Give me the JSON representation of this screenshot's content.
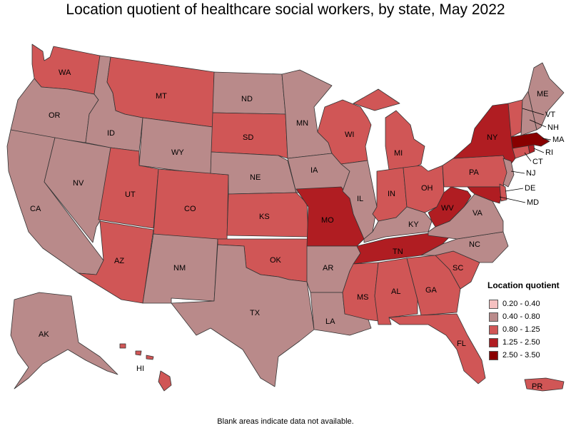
{
  "title": "Location quotient of healthcare social workers, by state, May 2022",
  "footnote": "Blank areas indicate data not available.",
  "legend": {
    "title": "Location quotient",
    "items": [
      {
        "label": "0.20 - 0.40",
        "color": "#f5c0c0"
      },
      {
        "label": "0.40 - 0.80",
        "color": "#b98a8a"
      },
      {
        "label": "0.80 - 1.25",
        "color": "#d05656"
      },
      {
        "label": "1.25 - 2.50",
        "color": "#b01d22"
      },
      {
        "label": "2.50 - 3.50",
        "color": "#880000"
      }
    ]
  },
  "states": [
    {
      "abbr": "WA",
      "class": 2
    },
    {
      "abbr": "OR",
      "class": 1
    },
    {
      "abbr": "CA",
      "class": 1
    },
    {
      "abbr": "NV",
      "class": 1
    },
    {
      "abbr": "ID",
      "class": 1
    },
    {
      "abbr": "MT",
      "class": 2
    },
    {
      "abbr": "WY",
      "class": 1
    },
    {
      "abbr": "UT",
      "class": 2
    },
    {
      "abbr": "AZ",
      "class": 2
    },
    {
      "abbr": "CO",
      "class": 2
    },
    {
      "abbr": "NM",
      "class": 1
    },
    {
      "abbr": "ND",
      "class": 1
    },
    {
      "abbr": "SD",
      "class": 2
    },
    {
      "abbr": "NE",
      "class": 1
    },
    {
      "abbr": "KS",
      "class": 2
    },
    {
      "abbr": "OK",
      "class": 2
    },
    {
      "abbr": "TX",
      "class": 1
    },
    {
      "abbr": "MN",
      "class": 1
    },
    {
      "abbr": "IA",
      "class": 1
    },
    {
      "abbr": "MO",
      "class": 3
    },
    {
      "abbr": "AR",
      "class": 1
    },
    {
      "abbr": "LA",
      "class": 1
    },
    {
      "abbr": "WI",
      "class": 2
    },
    {
      "abbr": "IL",
      "class": 1
    },
    {
      "abbr": "MI",
      "class": 2
    },
    {
      "abbr": "IN",
      "class": 2
    },
    {
      "abbr": "OH",
      "class": 2
    },
    {
      "abbr": "KY",
      "class": 1
    },
    {
      "abbr": "TN",
      "class": 3
    },
    {
      "abbr": "MS",
      "class": 2
    },
    {
      "abbr": "AL",
      "class": 2
    },
    {
      "abbr": "GA",
      "class": 2
    },
    {
      "abbr": "FL",
      "class": 2
    },
    {
      "abbr": "SC",
      "class": 2
    },
    {
      "abbr": "NC",
      "class": 1
    },
    {
      "abbr": "VA",
      "class": 1
    },
    {
      "abbr": "WV",
      "class": 3
    },
    {
      "abbr": "PA",
      "class": 2
    },
    {
      "abbr": "NY",
      "class": 3
    },
    {
      "abbr": "MD",
      "class": 3
    },
    {
      "abbr": "DE",
      "class": 2
    },
    {
      "abbr": "NJ",
      "class": 1
    },
    {
      "abbr": "CT",
      "class": 2
    },
    {
      "abbr": "RI",
      "class": 3
    },
    {
      "abbr": "MA",
      "class": 4
    },
    {
      "abbr": "VT",
      "class": 2
    },
    {
      "abbr": "NH",
      "class": 1
    },
    {
      "abbr": "ME",
      "class": 1
    },
    {
      "abbr": "AK",
      "class": 1
    },
    {
      "abbr": "HI",
      "class": 2
    },
    {
      "abbr": "PR",
      "class": 2
    }
  ]
}
